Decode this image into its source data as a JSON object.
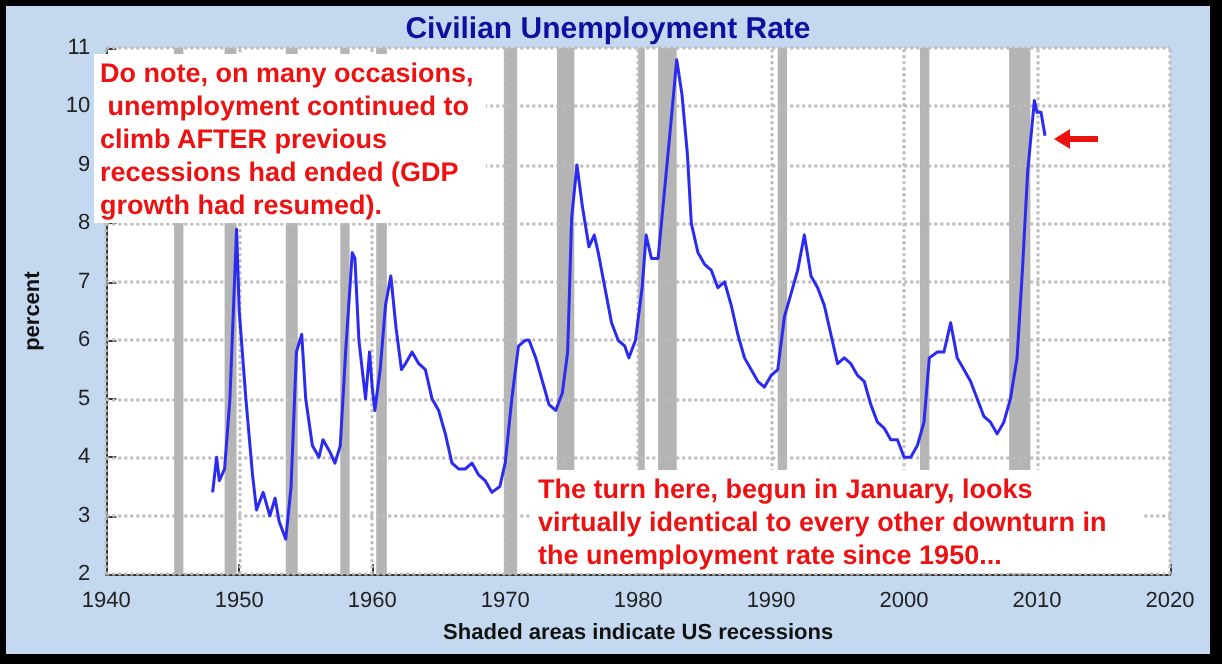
{
  "chart_data": {
    "type": "line",
    "title": "Civilian Unemployment Rate",
    "xlabel": "Shaded areas indicate US recessions",
    "ylabel": "percent",
    "annotations": [
      "Do note, on many occasions, unemployment continued to climb AFTER previous recessions had ended (GDP growth had resumed).",
      "The turn here, begun in January, looks virtually identical to every other downturn in the unemployment rate since 1950..."
    ],
    "x": [
      1948.0,
      1948.3,
      1948.5,
      1948.9,
      1949.3,
      1949.8,
      1950.0,
      1950.5,
      1951.0,
      1951.3,
      1951.8,
      1952.3,
      1952.7,
      1953.0,
      1953.5,
      1953.9,
      1954.3,
      1954.7,
      1955.0,
      1955.5,
      1956.0,
      1956.3,
      1956.8,
      1957.2,
      1957.6,
      1958.0,
      1958.5,
      1958.7,
      1959.0,
      1959.5,
      1959.8,
      1960.0,
      1960.2,
      1960.6,
      1961.0,
      1961.4,
      1961.8,
      1962.2,
      1962.5,
      1963.0,
      1963.5,
      1964.0,
      1964.5,
      1965.0,
      1965.5,
      1966.0,
      1966.5,
      1967.0,
      1967.5,
      1968.0,
      1968.5,
      1969.0,
      1969.6,
      1970.0,
      1970.5,
      1971.0,
      1971.5,
      1971.8,
      1972.3,
      1972.8,
      1973.3,
      1973.8,
      1974.3,
      1974.7,
      1975.0,
      1975.4,
      1975.8,
      1976.3,
      1976.7,
      1977.0,
      1977.5,
      1978.0,
      1978.5,
      1979.0,
      1979.3,
      1979.8,
      1980.3,
      1980.6,
      1981.0,
      1981.5,
      1982.0,
      1982.5,
      1982.9,
      1983.3,
      1983.7,
      1984.0,
      1984.5,
      1985.0,
      1985.5,
      1986.0,
      1986.5,
      1987.0,
      1987.5,
      1988.0,
      1988.5,
      1989.0,
      1989.5,
      1990.0,
      1990.5,
      1991.0,
      1991.5,
      1992.0,
      1992.5,
      1993.0,
      1993.5,
      1994.0,
      1994.5,
      1995.0,
      1995.5,
      1996.0,
      1996.5,
      1997.0,
      1997.5,
      1998.0,
      1998.5,
      1999.0,
      1999.5,
      2000.0,
      2000.5,
      2001.0,
      2001.5,
      2001.9,
      2002.5,
      2003.0,
      2003.5,
      2004.0,
      2004.5,
      2005.0,
      2005.5,
      2006.0,
      2006.5,
      2007.0,
      2007.5,
      2008.0,
      2008.5,
      2008.9,
      2009.3,
      2009.8,
      2010.0,
      2010.3,
      2010.6
    ],
    "series": [
      {
        "color": "#2a2af0",
        "values": [
          3.4,
          4.0,
          3.6,
          3.8,
          5.0,
          7.9,
          6.5,
          5.0,
          3.7,
          3.1,
          3.4,
          3.0,
          3.3,
          2.9,
          2.6,
          3.5,
          5.8,
          6.1,
          5.0,
          4.2,
          4.0,
          4.3,
          4.1,
          3.9,
          4.2,
          5.8,
          7.5,
          7.4,
          6.0,
          5.0,
          5.8,
          5.2,
          4.8,
          5.5,
          6.6,
          7.1,
          6.2,
          5.5,
          5.6,
          5.8,
          5.6,
          5.5,
          5.0,
          4.8,
          4.4,
          3.9,
          3.8,
          3.8,
          3.9,
          3.7,
          3.6,
          3.4,
          3.5,
          3.9,
          5.0,
          5.9,
          6.0,
          6.0,
          5.7,
          5.3,
          4.9,
          4.8,
          5.1,
          5.8,
          8.1,
          9.0,
          8.3,
          7.6,
          7.8,
          7.5,
          6.9,
          6.3,
          6.0,
          5.9,
          5.7,
          6.0,
          6.9,
          7.8,
          7.4,
          7.4,
          8.6,
          9.8,
          10.8,
          10.2,
          9.2,
          8.0,
          7.5,
          7.3,
          7.2,
          6.9,
          7.0,
          6.6,
          6.1,
          5.7,
          5.5,
          5.3,
          5.2,
          5.4,
          5.5,
          6.4,
          6.8,
          7.2,
          7.8,
          7.1,
          6.9,
          6.6,
          6.1,
          5.6,
          5.7,
          5.6,
          5.4,
          5.3,
          4.9,
          4.6,
          4.5,
          4.3,
          4.3,
          4.0,
          4.0,
          4.2,
          4.6,
          5.7,
          5.8,
          5.8,
          6.3,
          5.7,
          5.5,
          5.3,
          5.0,
          4.7,
          4.6,
          4.4,
          4.6,
          5.0,
          5.7,
          7.2,
          8.9,
          10.1,
          9.9,
          9.9,
          9.5
        ]
      }
    ],
    "xlim": [
      1940,
      2020
    ],
    "xticks": [
      1940,
      1950,
      1960,
      1970,
      1980,
      1990,
      2000,
      2010,
      2020
    ],
    "ylim": [
      2,
      11
    ],
    "yticks": [
      2,
      3,
      4,
      5,
      6,
      7,
      8,
      9,
      10,
      11
    ],
    "bands": [
      {
        "axis": "x",
        "from": 1945.1,
        "to": 1945.8,
        "color": "#b4b4b4"
      },
      {
        "axis": "x",
        "from": 1948.9,
        "to": 1949.8,
        "color": "#b4b4b4"
      },
      {
        "axis": "x",
        "from": 1953.5,
        "to": 1954.4,
        "color": "#b4b4b4"
      },
      {
        "axis": "x",
        "from": 1957.6,
        "to": 1958.3,
        "color": "#b4b4b4"
      },
      {
        "axis": "x",
        "from": 1960.3,
        "to": 1961.1,
        "color": "#b4b4b4"
      },
      {
        "axis": "x",
        "from": 1969.9,
        "to": 1970.9,
        "color": "#b4b4b4"
      },
      {
        "axis": "x",
        "from": 1973.9,
        "to": 1975.2,
        "color": "#b4b4b4"
      },
      {
        "axis": "x",
        "from": 1980.0,
        "to": 1980.5,
        "color": "#b4b4b4"
      },
      {
        "axis": "x",
        "from": 1981.5,
        "to": 1982.9,
        "color": "#b4b4b4"
      },
      {
        "axis": "x",
        "from": 1990.5,
        "to": 1991.2,
        "color": "#b4b4b4"
      },
      {
        "axis": "x",
        "from": 2001.2,
        "to": 2001.9,
        "color": "#b4b4b4"
      },
      {
        "axis": "x",
        "from": 2007.9,
        "to": 2009.5,
        "color": "#b4b4b4"
      }
    ],
    "grid": true,
    "marker": "none",
    "line_style": "solid"
  }
}
